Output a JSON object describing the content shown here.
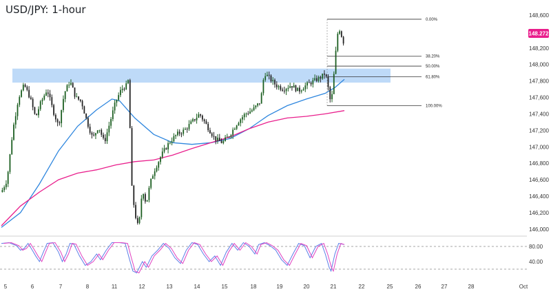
{
  "title": "USD/JPY: 1-hour",
  "current_price_label": "148.272",
  "colors": {
    "up": "#26a69a",
    "down": "#222222",
    "candle": "#1b5e20",
    "ma_blue": "#2e86de",
    "ma_pink": "#e91e8c",
    "zone": "#b3d4f7",
    "rsi_blue": "#5b7de8",
    "rsi_pink": "#e040c0",
    "price_tag": "#e91e8c"
  },
  "chart_data": {
    "type": "candlestick",
    "title": "USD/JPY: 1-hour",
    "price_ticks": [
      148.6,
      148.4,
      148.2,
      148.0,
      147.8,
      147.6,
      147.4,
      147.2,
      147.0,
      146.8,
      146.6,
      146.4,
      146.2,
      146.0
    ],
    "price_tick_labels": [
      "148,600",
      "148,400",
      "148,200",
      "148,000",
      "147,800",
      "147,600",
      "147,400",
      "147,200",
      "147,000",
      "146,800",
      "146,600",
      "146,400",
      "146,200",
      "146,000"
    ],
    "ylim": [
      145.94,
      148.7
    ],
    "x_labels": [
      "5",
      "6",
      "7",
      "8",
      "11",
      "12",
      "13",
      "14",
      "15",
      "18",
      "19",
      "20",
      "21",
      "22",
      "25",
      "26",
      "27",
      "28",
      "Oct"
    ],
    "price_path": [
      [
        0,
        146.45
      ],
      [
        3,
        146.6
      ],
      [
        6,
        147.2
      ],
      [
        9,
        147.6
      ],
      [
        12,
        147.75
      ],
      [
        15,
        147.6
      ],
      [
        18,
        147.35
      ],
      [
        20,
        147.5
      ],
      [
        24,
        147.7
      ],
      [
        27,
        147.45
      ],
      [
        30,
        147.25
      ],
      [
        33,
        147.65
      ],
      [
        36,
        147.8
      ],
      [
        39,
        147.6
      ],
      [
        42,
        147.55
      ],
      [
        45,
        147.3
      ],
      [
        48,
        147.1
      ],
      [
        51,
        147.25
      ],
      [
        54,
        147.05
      ],
      [
        57,
        147.3
      ],
      [
        60,
        147.55
      ],
      [
        63,
        147.7
      ],
      [
        66,
        147.75
      ],
      [
        67,
        147.85
      ],
      [
        68,
        146.6
      ],
      [
        70,
        146.2
      ],
      [
        72,
        146.0
      ],
      [
        74,
        146.5
      ],
      [
        76,
        146.3
      ],
      [
        78,
        146.55
      ],
      [
        80,
        146.7
      ],
      [
        84,
        146.9
      ],
      [
        88,
        147.05
      ],
      [
        92,
        147.15
      ],
      [
        96,
        147.2
      ],
      [
        100,
        147.3
      ],
      [
        104,
        147.4
      ],
      [
        108,
        147.25
      ],
      [
        112,
        147.1
      ],
      [
        116,
        147.05
      ],
      [
        120,
        147.15
      ],
      [
        124,
        147.3
      ],
      [
        128,
        147.4
      ],
      [
        132,
        147.45
      ],
      [
        136,
        147.55
      ],
      [
        138,
        147.9
      ],
      [
        140,
        147.85
      ],
      [
        144,
        147.75
      ],
      [
        148,
        147.7
      ],
      [
        152,
        147.75
      ],
      [
        156,
        147.68
      ],
      [
        160,
        147.75
      ],
      [
        164,
        147.8
      ],
      [
        168,
        147.85
      ],
      [
        170,
        147.9
      ],
      [
        172,
        147.65
      ],
      [
        173,
        147.5
      ],
      [
        174,
        147.75
      ],
      [
        175,
        148.0
      ],
      [
        176,
        148.3
      ],
      [
        177,
        148.45
      ],
      [
        178,
        148.4
      ],
      [
        179,
        148.3
      ],
      [
        180,
        148.25
      ]
    ],
    "ma_blue": [
      [
        0,
        146.02
      ],
      [
        10,
        146.2
      ],
      [
        20,
        146.55
      ],
      [
        30,
        146.95
      ],
      [
        40,
        147.25
      ],
      [
        50,
        147.45
      ],
      [
        58,
        147.58
      ],
      [
        62,
        147.56
      ],
      [
        70,
        147.35
      ],
      [
        80,
        147.15
      ],
      [
        90,
        147.05
      ],
      [
        100,
        147.03
      ],
      [
        110,
        147.05
      ],
      [
        120,
        147.1
      ],
      [
        130,
        147.22
      ],
      [
        140,
        147.38
      ],
      [
        150,
        147.5
      ],
      [
        160,
        147.58
      ],
      [
        170,
        147.65
      ],
      [
        175,
        147.72
      ],
      [
        180,
        147.82
      ]
    ],
    "ma_pink": [
      [
        0,
        146.04
      ],
      [
        10,
        146.28
      ],
      [
        20,
        146.45
      ],
      [
        30,
        146.6
      ],
      [
        40,
        146.68
      ],
      [
        50,
        146.72
      ],
      [
        60,
        146.78
      ],
      [
        70,
        146.82
      ],
      [
        80,
        146.84
      ],
      [
        90,
        146.9
      ],
      [
        100,
        146.98
      ],
      [
        110,
        147.05
      ],
      [
        120,
        147.12
      ],
      [
        130,
        147.22
      ],
      [
        140,
        147.3
      ],
      [
        150,
        147.35
      ],
      [
        160,
        147.37
      ],
      [
        170,
        147.4
      ],
      [
        180,
        147.44
      ]
    ],
    "supply_zone": {
      "from": 147.78,
      "to": 147.95
    },
    "fibonacci": [
      {
        "label": "0.00%",
        "price": 148.55
      },
      {
        "label": "38.20%",
        "price": 148.1
      },
      {
        "label": "50.00%",
        "price": 147.98
      },
      {
        "label": "61.80%",
        "price": 147.85
      },
      {
        "label": "100.00%",
        "price": 147.5
      }
    ],
    "rsi_ticks": [
      "80.00",
      "40.00"
    ],
    "rsi_levels": [
      80,
      20
    ],
    "rsi_ylim": [
      0,
      100
    ],
    "rsi_path": [
      [
        0,
        88
      ],
      [
        4,
        90
      ],
      [
        8,
        82
      ],
      [
        10,
        70
      ],
      [
        12,
        75
      ],
      [
        14,
        88
      ],
      [
        16,
        72
      ],
      [
        18,
        55
      ],
      [
        20,
        40
      ],
      [
        22,
        65
      ],
      [
        24,
        88
      ],
      [
        27,
        90
      ],
      [
        30,
        65
      ],
      [
        32,
        40
      ],
      [
        34,
        60
      ],
      [
        36,
        88
      ],
      [
        38,
        86
      ],
      [
        41,
        55
      ],
      [
        44,
        30
      ],
      [
        47,
        40
      ],
      [
        50,
        60
      ],
      [
        52,
        45
      ],
      [
        55,
        70
      ],
      [
        58,
        90
      ],
      [
        62,
        90
      ],
      [
        65,
        88
      ],
      [
        67,
        50
      ],
      [
        69,
        15
      ],
      [
        71,
        10
      ],
      [
        74,
        40
      ],
      [
        76,
        25
      ],
      [
        79,
        55
      ],
      [
        82,
        70
      ],
      [
        85,
        88
      ],
      [
        88,
        75
      ],
      [
        91,
        50
      ],
      [
        94,
        35
      ],
      [
        97,
        70
      ],
      [
        100,
        90
      ],
      [
        103,
        85
      ],
      [
        106,
        60
      ],
      [
        109,
        40
      ],
      [
        112,
        55
      ],
      [
        115,
        30
      ],
      [
        118,
        65
      ],
      [
        121,
        88
      ],
      [
        124,
        70
      ],
      [
        127,
        90
      ],
      [
        130,
        80
      ],
      [
        133,
        60
      ],
      [
        135,
        85
      ],
      [
        138,
        90
      ],
      [
        141,
        82
      ],
      [
        144,
        70
      ],
      [
        147,
        45
      ],
      [
        150,
        30
      ],
      [
        153,
        60
      ],
      [
        156,
        88
      ],
      [
        159,
        82
      ],
      [
        162,
        50
      ],
      [
        165,
        80
      ],
      [
        168,
        88
      ],
      [
        170,
        60
      ],
      [
        172,
        25
      ],
      [
        173,
        15
      ],
      [
        175,
        60
      ],
      [
        177,
        88
      ],
      [
        180,
        85
      ]
    ]
  }
}
